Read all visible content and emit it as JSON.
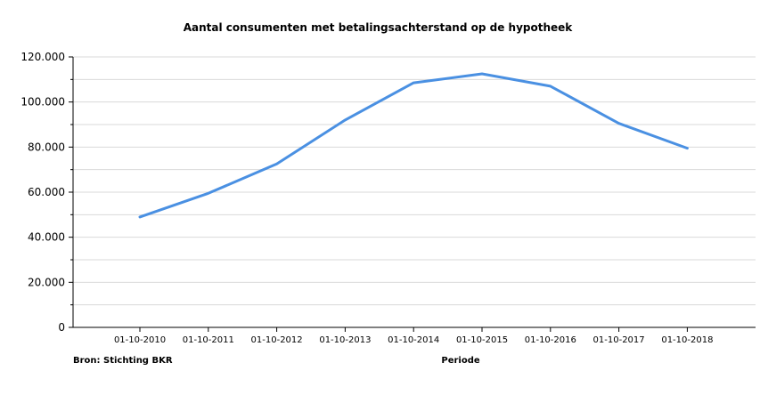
{
  "chart_data": {
    "type": "line",
    "title": "Aantal consumenten met betalingsachterstand op de hypotheek",
    "xlabel": "Periode",
    "ylabel": "",
    "source_note": "Bron: Stichting BKR",
    "categories": [
      "01-10-2010",
      "01-10-2011",
      "01-10-2012",
      "01-10-2013",
      "01-10-2014",
      "01-10-2015",
      "01-10-2016",
      "01-10-2017",
      "01-10-2018"
    ],
    "series": [
      {
        "values": [
          49000,
          59500,
          72500,
          92000,
          108500,
          112500,
          107000,
          90500,
          79500
        ]
      }
    ],
    "ylim": [
      0,
      120000
    ],
    "y_ticks": [
      0,
      20000,
      40000,
      60000,
      80000,
      100000,
      120000
    ],
    "y_tick_labels": [
      "0",
      "20.000",
      "40.000",
      "60.000",
      "80.000",
      "100.000",
      "120.000"
    ],
    "grid": true,
    "legend": "none",
    "line_color": "#4a90e2"
  }
}
